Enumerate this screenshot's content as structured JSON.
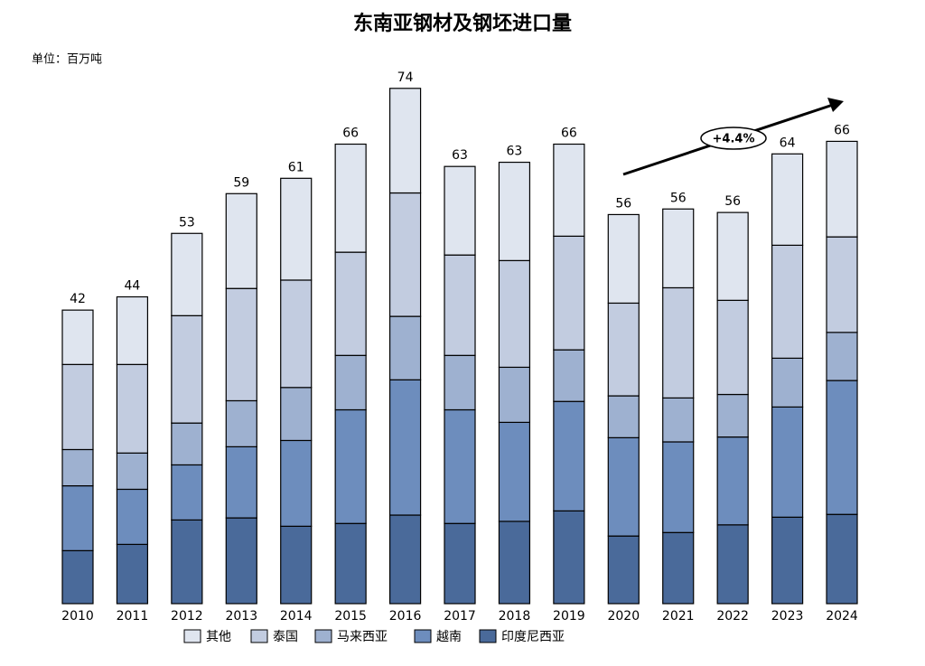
{
  "chart_data": {
    "type": "stacked_bar",
    "title": "东南亚钢材及钢坯进口量",
    "subtitle": "单位：百万吨",
    "categories": [
      "2010",
      "2011",
      "2012",
      "2013",
      "2014",
      "2015",
      "2016",
      "2017",
      "2018",
      "2019",
      "2020",
      "2021",
      "2022",
      "2023",
      "2024"
    ],
    "totals": [
      42,
      44,
      53,
      59,
      61,
      66,
      74,
      63,
      63,
      66,
      56,
      56,
      56,
      64,
      66
    ],
    "series": [
      {
        "name": "其他",
        "color": "#dfe5ef",
        "values": [
          7.8,
          9.7,
          11.8,
          13.6,
          14.6,
          15.5,
          15.0,
          12.7,
          14.1,
          13.2,
          12.7,
          11.3,
          12.6,
          13.1,
          13.7
        ]
      },
      {
        "name": "泰国",
        "color": "#c2cce0",
        "values": [
          12.2,
          12.7,
          15.4,
          16.1,
          15.4,
          14.8,
          17.7,
          14.4,
          15.3,
          16.3,
          13.3,
          15.8,
          13.5,
          16.2,
          13.7
        ]
      },
      {
        "name": "马来西亚",
        "color": "#9eb1d0",
        "values": [
          5.2,
          5.2,
          6.0,
          6.6,
          7.6,
          7.8,
          9.1,
          7.8,
          7.9,
          7.4,
          6.0,
          6.3,
          6.1,
          7.0,
          6.9
        ]
      },
      {
        "name": "越南",
        "color": "#6d8dbd",
        "values": [
          9.3,
          7.9,
          7.9,
          10.2,
          12.3,
          16.3,
          19.4,
          16.3,
          14.2,
          15.7,
          14.1,
          13.0,
          12.6,
          15.8,
          19.2
        ]
      },
      {
        "name": "印度尼西亚",
        "color": "#4a6a9a",
        "values": [
          7.6,
          8.5,
          12.0,
          12.3,
          11.1,
          11.5,
          12.7,
          11.5,
          11.8,
          13.3,
          9.7,
          10.2,
          11.3,
          12.4,
          12.8
        ]
      }
    ],
    "annotation": "+4.4%"
  }
}
